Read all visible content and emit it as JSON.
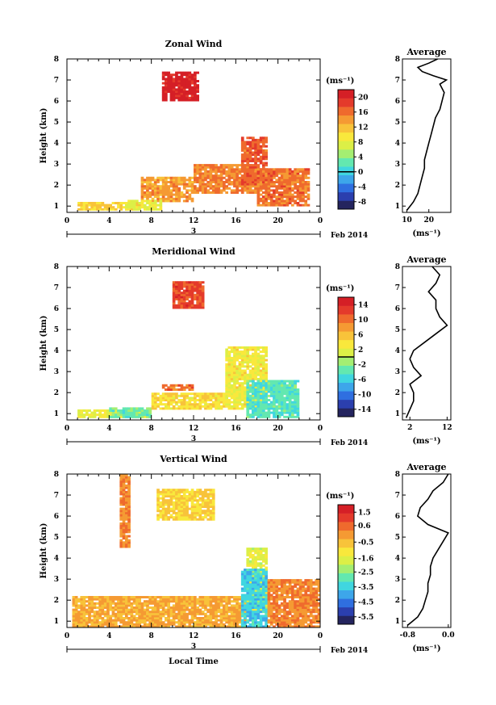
{
  "chart_data": [
    {
      "type": "heatmap",
      "title": "Zonal Wind",
      "ylabel": "Height (km)",
      "x_ticks": [
        "0",
        "4",
        "8",
        "12",
        "16",
        "20",
        "0"
      ],
      "xlim": [
        0,
        24
      ],
      "y_ticks": [
        "1",
        "2",
        "3",
        "4",
        "5",
        "6",
        "7",
        "8"
      ],
      "ylim": [
        0.7,
        8
      ],
      "date_day": "3",
      "date_label": "Feb 2014",
      "colorbar": {
        "unit": "(ms⁻¹)",
        "tick_labels": [
          "20",
          "16",
          "12",
          "8",
          "4",
          "0",
          "-4",
          "-8"
        ],
        "range": [
          -10,
          22
        ],
        "contour_marker": 0
      },
      "regions": [
        {
          "x": [
            1,
            7
          ],
          "y": [
            0.8,
            1.2
          ],
          "v": 11
        },
        {
          "x": [
            7,
            12
          ],
          "y": [
            1.2,
            2.4
          ],
          "v": 14
        },
        {
          "x": [
            12,
            18
          ],
          "y": [
            1.6,
            3.0
          ],
          "v": 15
        },
        {
          "x": [
            16.5,
            19
          ],
          "y": [
            2.0,
            4.3
          ],
          "v": 17
        },
        {
          "x": [
            18,
            23
          ],
          "y": [
            1.0,
            2.8
          ],
          "v": 16
        },
        {
          "x": [
            9,
            12.5
          ],
          "y": [
            6.0,
            7.3
          ],
          "v": 21
        },
        {
          "x": [
            5.5,
            9
          ],
          "y": [
            0.8,
            1.3
          ],
          "v": 8
        }
      ],
      "average_profile": {
        "title": "Average",
        "xlabel": "(ms⁻¹)",
        "x_ticks": [
          "10",
          "20"
        ],
        "xlim": [
          8,
          30
        ],
        "heights": [
          0.8,
          1.2,
          1.6,
          2.0,
          2.4,
          2.8,
          3.2,
          3.6,
          4.0,
          4.4,
          4.8,
          5.2,
          5.6,
          6.0,
          6.4,
          6.8,
          7.0,
          7.2,
          7.4,
          7.6,
          7.8,
          8.0
        ],
        "values": [
          10,
          13,
          15,
          16,
          17,
          18,
          18,
          19,
          20,
          21,
          22,
          23,
          25,
          26,
          27,
          25,
          28,
          22,
          17,
          15,
          20,
          24
        ]
      }
    },
    {
      "type": "heatmap",
      "title": "Meridional Wind",
      "ylabel": "Height (km)",
      "x_ticks": [
        "0",
        "4",
        "8",
        "12",
        "16",
        "20",
        "0"
      ],
      "xlim": [
        0,
        24
      ],
      "y_ticks": [
        "1",
        "2",
        "3",
        "4",
        "5",
        "6",
        "7",
        "8"
      ],
      "ylim": [
        0.7,
        8
      ],
      "date_day": "3",
      "date_label": "Feb 2014",
      "colorbar": {
        "unit": "(ms⁻¹)",
        "tick_labels": [
          "14",
          "10",
          "6",
          "2",
          "-2",
          "-6",
          "-10",
          "-14"
        ],
        "range": [
          -16,
          16
        ],
        "contour_marker": 0
      },
      "regions": [
        {
          "x": [
            1,
            8
          ],
          "y": [
            0.8,
            1.2
          ],
          "v": 2
        },
        {
          "x": [
            4,
            8
          ],
          "y": [
            0.8,
            1.3
          ],
          "v": -3
        },
        {
          "x": [
            8,
            15
          ],
          "y": [
            1.2,
            2.0
          ],
          "v": 4
        },
        {
          "x": [
            15,
            19
          ],
          "y": [
            1.2,
            4.2
          ],
          "v": 3
        },
        {
          "x": [
            17,
            22
          ],
          "y": [
            0.8,
            2.6
          ],
          "v": -4
        },
        {
          "x": [
            10,
            13
          ],
          "y": [
            6.0,
            7.2
          ],
          "v": 12
        },
        {
          "x": [
            9,
            12
          ],
          "y": [
            2.1,
            2.4
          ],
          "v": 10
        }
      ],
      "average_profile": {
        "title": "Average",
        "xlabel": "(ms⁻¹)",
        "x_ticks": [
          "2",
          "12"
        ],
        "xlim": [
          0,
          13
        ],
        "heights": [
          0.8,
          1.2,
          1.6,
          2.0,
          2.4,
          2.8,
          3.2,
          3.6,
          4.0,
          4.4,
          4.8,
          5.2,
          5.6,
          6.0,
          6.4,
          6.8,
          7.2,
          7.6,
          8.0
        ],
        "values": [
          1,
          2,
          3,
          3,
          2,
          5,
          3,
          2,
          3,
          6,
          9,
          12,
          10,
          9,
          9,
          7,
          9,
          10,
          8
        ]
      }
    },
    {
      "type": "heatmap",
      "title": "Vertical Wind",
      "ylabel": "Height (km)",
      "xlabel": "Local Time",
      "x_ticks": [
        "0",
        "4",
        "8",
        "12",
        "16",
        "20",
        "0"
      ],
      "xlim": [
        0,
        24
      ],
      "y_ticks": [
        "1",
        "2",
        "3",
        "4",
        "5",
        "6",
        "7",
        "8"
      ],
      "ylim": [
        0.7,
        8
      ],
      "date_day": "3",
      "date_label": "Feb 2014",
      "colorbar": {
        "unit": "(ms⁻¹)",
        "tick_labels": [
          "1.5",
          "0.6",
          "-0.5",
          "-1.6",
          "-2.5",
          "-3.5",
          "-4.5",
          "-5.5"
        ],
        "range": [
          -6,
          2
        ],
        "contour_marker": null
      },
      "regions": [
        {
          "x": [
            0.5,
            17
          ],
          "y": [
            0.7,
            2.2
          ],
          "v": -0.2
        },
        {
          "x": [
            17,
            19
          ],
          "y": [
            1.5,
            4.5
          ],
          "v": -1.7
        },
        {
          "x": [
            16.5,
            19
          ],
          "y": [
            0.7,
            3.5
          ],
          "v": -3.5
        },
        {
          "x": [
            19,
            24
          ],
          "y": [
            0.7,
            3.0
          ],
          "v": 0.2
        },
        {
          "x": [
            8.5,
            14
          ],
          "y": [
            5.8,
            7.2
          ],
          "v": -0.8
        },
        {
          "x": [
            5,
            6
          ],
          "y": [
            4.5,
            8.0
          ],
          "v": 0.3
        }
      ],
      "average_profile": {
        "title": "Average",
        "xlabel": "(ms⁻¹)",
        "x_ticks": [
          "-0.8",
          "0.0"
        ],
        "xlim": [
          -0.9,
          0.05
        ],
        "heights": [
          0.8,
          1.2,
          1.6,
          2.0,
          2.4,
          2.8,
          3.2,
          3.6,
          4.0,
          4.4,
          4.8,
          5.2,
          5.6,
          6.0,
          6.4,
          6.8,
          7.2,
          7.6,
          8.0
        ],
        "values": [
          -0.8,
          -0.6,
          -0.5,
          -0.45,
          -0.4,
          -0.4,
          -0.35,
          -0.35,
          -0.3,
          -0.2,
          -0.1,
          0.0,
          -0.4,
          -0.6,
          -0.55,
          -0.4,
          -0.3,
          -0.1,
          0.0
        ]
      }
    }
  ]
}
